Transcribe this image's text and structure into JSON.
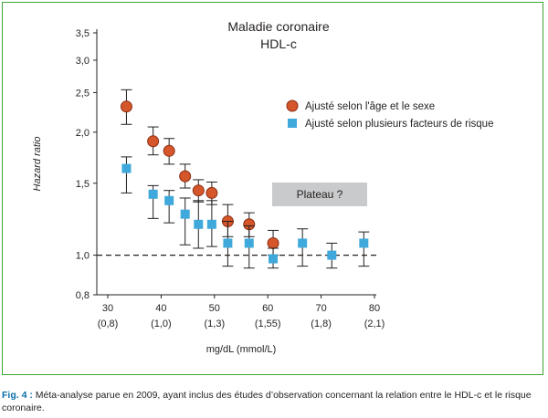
{
  "chart_data": {
    "type": "scatter",
    "title": "Maladie coronaire",
    "subtitle": "HDL-c",
    "xlabel": "mg/dL (mmol/L)",
    "ylabel": "Hazard ratio",
    "xlim": [
      30,
      80
    ],
    "ylim": [
      0.8,
      3.5
    ],
    "yscale": "log",
    "x_ticks": [
      {
        "value": 30,
        "label": "30",
        "sublabel": "(0,8)"
      },
      {
        "value": 40,
        "label": "40",
        "sublabel": "(1,0)"
      },
      {
        "value": 50,
        "label": "50",
        "sublabel": "(1,3)"
      },
      {
        "value": 60,
        "label": "60",
        "sublabel": "(1,55)"
      },
      {
        "value": 70,
        "label": "70",
        "sublabel": "(1,8)"
      },
      {
        "value": 80,
        "label": "80",
        "sublabel": "(2,1)"
      }
    ],
    "y_ticks": [
      {
        "value": 0.8,
        "label": "0,8"
      },
      {
        "value": 1.0,
        "label": "1,0"
      },
      {
        "value": 1.5,
        "label": "1,5"
      },
      {
        "value": 2.0,
        "label": "2,0"
      },
      {
        "value": 2.5,
        "label": "2,5"
      },
      {
        "value": 3.0,
        "label": "3,0"
      },
      {
        "value": 3.5,
        "label": "3,5"
      }
    ],
    "reference_line": {
      "y": 1.0,
      "style": "dashed"
    },
    "annotation": "Plateau ?",
    "legend_position": "top-right",
    "series": [
      {
        "name": "Ajusté selon l'âge et le sexe",
        "marker": "circle",
        "color": "#d4562a",
        "points": [
          {
            "x": 33.5,
            "y": 2.31,
            "low": 2.09,
            "high": 2.54
          },
          {
            "x": 38.5,
            "y": 1.9,
            "low": 1.76,
            "high": 2.06
          },
          {
            "x": 41.5,
            "y": 1.8,
            "low": 1.67,
            "high": 1.93
          },
          {
            "x": 44.5,
            "y": 1.56,
            "low": 1.46,
            "high": 1.67
          },
          {
            "x": 47.0,
            "y": 1.44,
            "low": 1.35,
            "high": 1.53
          },
          {
            "x": 49.5,
            "y": 1.42,
            "low": 1.33,
            "high": 1.51
          },
          {
            "x": 52.5,
            "y": 1.21,
            "low": 1.11,
            "high": 1.33
          },
          {
            "x": 56.5,
            "y": 1.19,
            "low": 1.11,
            "high": 1.27
          },
          {
            "x": 61.0,
            "y": 1.07,
            "low": 1.0,
            "high": 1.15
          }
        ]
      },
      {
        "name": "Ajusté selon plusieurs facteurs de risque",
        "marker": "square",
        "color": "#3fa9db",
        "points": [
          {
            "x": 33.5,
            "y": 1.63,
            "low": 1.42,
            "high": 1.74
          },
          {
            "x": 38.5,
            "y": 1.41,
            "low": 1.23,
            "high": 1.48
          },
          {
            "x": 41.5,
            "y": 1.36,
            "low": 1.2,
            "high": 1.44
          },
          {
            "x": 44.5,
            "y": 1.26,
            "low": 1.06,
            "high": 1.38
          },
          {
            "x": 47.0,
            "y": 1.19,
            "low": 1.04,
            "high": 1.36
          },
          {
            "x": 49.5,
            "y": 1.19,
            "low": 1.05,
            "high": 1.36
          },
          {
            "x": 52.5,
            "y": 1.07,
            "low": 0.94,
            "high": 1.21
          },
          {
            "x": 56.5,
            "y": 1.07,
            "low": 0.93,
            "high": 1.18
          },
          {
            "x": 61.0,
            "y": 0.98,
            "low": 0.93,
            "high": 1.04
          },
          {
            "x": 66.5,
            "y": 1.07,
            "low": 0.94,
            "high": 1.16
          },
          {
            "x": 72.0,
            "y": 1.0,
            "low": 0.93,
            "high": 1.07
          },
          {
            "x": 78.0,
            "y": 1.07,
            "low": 0.94,
            "high": 1.14
          }
        ]
      }
    ]
  },
  "caption": {
    "prefix": "Fig. 4 :",
    "text": " Méta-analyse parue en 2009, ayant inclus des études d’observation concernant la relation entre le HDL-c et le risque coronaire."
  }
}
